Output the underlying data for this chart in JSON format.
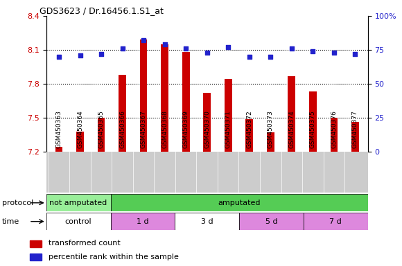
{
  "title": "GDS3623 / Dr.16456.1.S1_at",
  "samples": [
    "GSM450363",
    "GSM450364",
    "GSM450365",
    "GSM450366",
    "GSM450367",
    "GSM450368",
    "GSM450369",
    "GSM450370",
    "GSM450371",
    "GSM450372",
    "GSM450373",
    "GSM450374",
    "GSM450375",
    "GSM450376",
    "GSM450377"
  ],
  "red_values": [
    7.24,
    7.38,
    7.5,
    7.88,
    8.19,
    8.15,
    8.08,
    7.72,
    7.84,
    7.49,
    7.37,
    7.87,
    7.73,
    7.5,
    7.46
  ],
  "blue_values": [
    70,
    71,
    72,
    76,
    82,
    79,
    76,
    73,
    77,
    70,
    70,
    76,
    74,
    73,
    72
  ],
  "ylim_left": [
    7.2,
    8.4
  ],
  "ylim_right": [
    0,
    100
  ],
  "yticks_left": [
    7.2,
    7.5,
    7.8,
    8.1,
    8.4
  ],
  "yticks_right": [
    0,
    25,
    50,
    75,
    100
  ],
  "hgrid_values": [
    7.5,
    7.8,
    8.1
  ],
  "protocol_groups": [
    {
      "label": "not amputated",
      "start": 0,
      "end": 3,
      "color": "#99EE99"
    },
    {
      "label": "amputated",
      "start": 3,
      "end": 15,
      "color": "#55CC55"
    }
  ],
  "time_groups": [
    {
      "label": "control",
      "start": 0,
      "end": 3,
      "color": "#FFFFFF"
    },
    {
      "label": "1 d",
      "start": 3,
      "end": 6,
      "color": "#DD88DD"
    },
    {
      "label": "3 d",
      "start": 6,
      "end": 9,
      "color": "#FFFFFF"
    },
    {
      "label": "5 d",
      "start": 9,
      "end": 12,
      "color": "#DD88DD"
    },
    {
      "label": "7 d",
      "start": 12,
      "end": 15,
      "color": "#DD88DD"
    }
  ],
  "bar_color": "#CC0000",
  "dot_color": "#2222CC",
  "left_tick_color": "#CC0000",
  "right_tick_color": "#2222CC",
  "bar_width": 0.35,
  "dot_size": 18,
  "tick_label_bg": "#CCCCCC",
  "n_samples": 15
}
